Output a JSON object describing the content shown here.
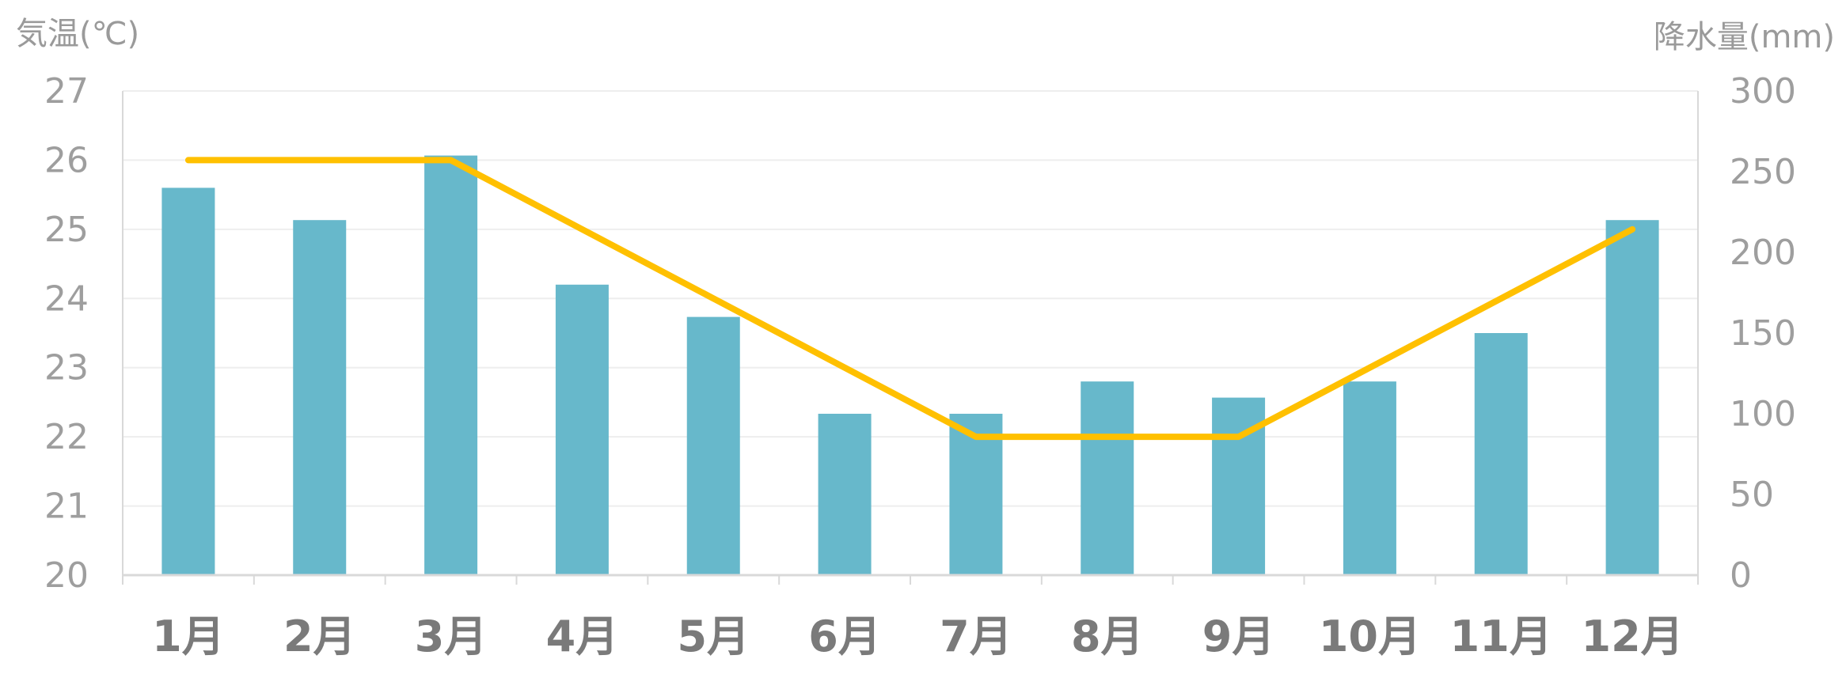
{
  "chart_data": {
    "type": "bar+line",
    "categories": [
      "1月",
      "2月",
      "3月",
      "4月",
      "5月",
      "6月",
      "7月",
      "8月",
      "9月",
      "10月",
      "11月",
      "12月"
    ],
    "series": [
      {
        "type": "bar",
        "axis": "right",
        "values": [
          240,
          220,
          260,
          180,
          160,
          100,
          100,
          120,
          110,
          120,
          150,
          220
        ],
        "color": "#67b8cb"
      },
      {
        "type": "line",
        "axis": "left",
        "values": [
          26,
          26,
          26,
          25,
          24,
          23,
          22,
          22,
          22,
          23,
          24,
          25
        ],
        "color": "#ffc000"
      }
    ],
    "left_axis": {
      "title": "気温(℃)",
      "min": 20,
      "max": 27,
      "ticks": [
        "20",
        "21",
        "22",
        "23",
        "24",
        "25",
        "26",
        "27"
      ]
    },
    "right_axis": {
      "title": "降水量(mm)",
      "min": 0,
      "max": 300,
      "ticks": [
        "0",
        "50",
        "100",
        "150",
        "200",
        "250",
        "300"
      ]
    },
    "grid": true,
    "legend": "none"
  }
}
